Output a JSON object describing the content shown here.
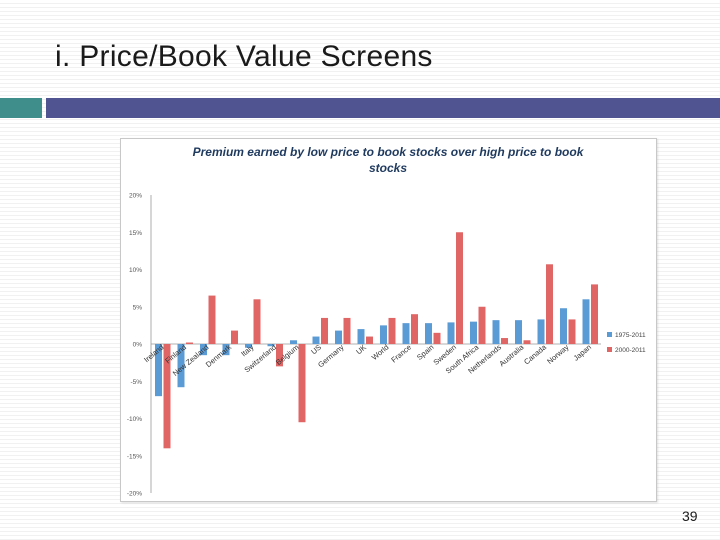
{
  "slide": {
    "title": "i. Price/Book Value Screens",
    "page_number": "39"
  },
  "colors": {
    "series_1": "#5b9bd5",
    "series_2": "#e06666",
    "accent_teal": "#3f8e8b",
    "accent_navy": "#505490"
  },
  "chart_data": {
    "type": "bar",
    "title": "Premium earned by low price to book stocks over high price to book stocks",
    "xlabel": "",
    "ylabel": "",
    "ylim": [
      -20,
      20
    ],
    "yticks": [
      "20%",
      "15%",
      "10%",
      "5%",
      "0%",
      "-5%",
      "-10%",
      "-15%",
      "-20%"
    ],
    "grid": false,
    "legend": "right",
    "categories": [
      "Ireland",
      "Finland",
      "New Zealand",
      "Denmark",
      "Italy",
      "Switzerland",
      "Belgium",
      "US",
      "Germany",
      "UK",
      "World",
      "France",
      "Spain",
      "Sweden",
      "South Africa",
      "Netherlands",
      "Australia",
      "Canada",
      "Norway",
      "Japan"
    ],
    "series": [
      {
        "name": "1975-2011",
        "values": [
          -7.0,
          -5.8,
          -1.5,
          -1.5,
          -0.5,
          -0.3,
          0.5,
          1.0,
          1.8,
          2.0,
          2.5,
          2.8,
          2.8,
          2.9,
          3.0,
          3.2,
          3.2,
          3.3,
          4.8,
          6.0
        ]
      },
      {
        "name": "2000-2011",
        "values": [
          -14.0,
          0.2,
          6.5,
          1.8,
          6.0,
          -3.0,
          -10.5,
          3.5,
          3.5,
          1.0,
          3.5,
          4.0,
          1.5,
          15.0,
          5.0,
          0.8,
          0.5,
          10.7,
          3.3,
          8.0
        ]
      }
    ]
  }
}
